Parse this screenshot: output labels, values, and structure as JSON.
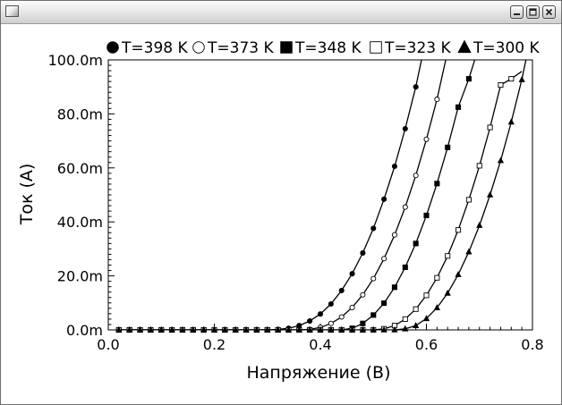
{
  "window": {
    "title": "",
    "icons": [
      "app-icon",
      "minimize-icon",
      "maximize-icon",
      "close-icon"
    ]
  },
  "chart_data": {
    "type": "scatter",
    "title": "",
    "xlabel": "Напряжение (В)",
    "ylabel": "Ток (А)",
    "xlim": [
      0.0,
      0.8
    ],
    "ylim": [
      0.0,
      0.1
    ],
    "x_ticks": [
      "0.0",
      "0.2",
      "0.4",
      "0.6",
      "0.8"
    ],
    "y_ticks": [
      "0.0m",
      "20.0m",
      "40.0m",
      "60.0m",
      "80.0m",
      "100.0m"
    ],
    "grid": false,
    "legend_position": "top",
    "x": [
      0.02,
      0.04,
      0.06,
      0.08,
      0.1,
      0.12,
      0.14,
      0.16,
      0.18,
      0.2,
      0.22,
      0.24,
      0.26,
      0.28,
      0.3,
      0.32,
      0.34,
      0.36,
      0.38,
      0.4,
      0.42,
      0.44,
      0.46,
      0.48,
      0.5,
      0.52,
      0.54,
      0.56,
      0.58,
      0.6,
      0.62,
      0.64,
      0.66,
      0.68,
      0.7,
      0.72,
      0.74,
      0.76,
      0.78
    ],
    "series": [
      {
        "name": "T=398 K",
        "marker": "filled-circle",
        "values": [
          0.0,
          0.0,
          0.0,
          0.0,
          0.0,
          0.0,
          0.0,
          0.0,
          0.0,
          0.0,
          0.0,
          0.0,
          0.0,
          0.0,
          0.0,
          0.0002,
          0.0006,
          0.0016,
          0.0033,
          0.0059,
          0.0096,
          0.0146,
          0.0208,
          0.0285,
          0.0376,
          0.0484,
          0.0606,
          0.0745,
          0.09,
          null,
          null,
          null,
          null,
          null,
          null,
          null,
          null,
          null,
          null
        ]
      },
      {
        "name": "T=373 K",
        "marker": "open-circle",
        "values": [
          0.0,
          0.0,
          0.0,
          0.0,
          0.0,
          0.0,
          0.0,
          0.0,
          0.0,
          0.0,
          0.0,
          0.0,
          0.0,
          0.0,
          0.0,
          0.0,
          0.0,
          0.0,
          0.0002,
          0.0009,
          0.0024,
          0.0048,
          0.0083,
          0.013,
          0.019,
          0.0264,
          0.0352,
          0.0455,
          0.0572,
          0.0706,
          0.0854,
          null,
          null,
          null,
          null,
          null,
          null,
          null,
          null
        ]
      },
      {
        "name": "T=348 K",
        "marker": "filled-square",
        "values": [
          0.0,
          0.0,
          0.0,
          0.0,
          0.0,
          0.0,
          0.0,
          0.0,
          0.0,
          0.0,
          0.0,
          0.0,
          0.0,
          0.0,
          0.0,
          0.0,
          0.0,
          0.0,
          0.0,
          0.0,
          0.0,
          0.0,
          0.0006,
          0.0024,
          0.0055,
          0.0099,
          0.0158,
          0.0232,
          0.032,
          0.0424,
          0.0542,
          0.0676,
          0.0825,
          0.093,
          null,
          null,
          null,
          null,
          null
        ]
      },
      {
        "name": "T=323 K",
        "marker": "open-square",
        "values": [
          0.0,
          0.0,
          0.0,
          0.0,
          0.0,
          0.0,
          0.0,
          0.0,
          0.0,
          0.0,
          0.0,
          0.0,
          0.0,
          0.0,
          0.0,
          0.0,
          0.0,
          0.0,
          0.0,
          0.0,
          0.0,
          0.0,
          0.0,
          0.0,
          0.0,
          0.0004,
          0.0016,
          0.004,
          0.0077,
          0.0128,
          0.0193,
          0.0274,
          0.037,
          0.0482,
          0.0608,
          0.075,
          0.0907,
          0.093,
          null
        ]
      },
      {
        "name": "T=300 K",
        "marker": "filled-triangle",
        "values": [
          0.0,
          0.0,
          0.0,
          0.0,
          0.0,
          0.0,
          0.0,
          0.0,
          0.0,
          0.0,
          0.0,
          0.0,
          0.0,
          0.0,
          0.0,
          0.0,
          0.0,
          0.0,
          0.0,
          0.0,
          0.0,
          0.0,
          0.0,
          0.0,
          0.0,
          0.0,
          0.0,
          0.0004,
          0.0016,
          0.0042,
          0.0082,
          0.0136,
          0.0205,
          0.0289,
          0.0387,
          0.05,
          0.0627,
          0.077,
          0.0927
        ]
      }
    ]
  }
}
